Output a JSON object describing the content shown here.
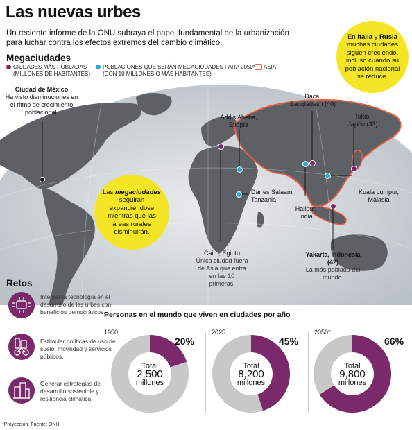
{
  "header": {
    "title": "Las nuevas urbes",
    "intro": "Un reciente informe de la ONU subraya el papel fundamental de la urbanización para luchar contra los efectos extremos del cambio climático."
  },
  "megaciudades": {
    "heading": "Megaciudades",
    "legend": {
      "pobladas_l1": "CIUDADES MÁS POBLADAS",
      "pobladas_l2": "(MILLONES DE HABITANTES)",
      "futuras_l1": "POBLACIONES QUE SERÁN MEGACIUDADES PARA 2050*",
      "futuras_l2": "(CON 10 MILLONES O MÁS HABITANTES)",
      "asia": "ASIA"
    }
  },
  "callouts": {
    "italia": {
      "pre": "En ",
      "italia": "Italia",
      "y": " y ",
      "rusia": "Rusia",
      "rest": " muchas ciudades siguen creciendo, incluso cuando su población nacional se reduce."
    },
    "megas": {
      "pre": "Las ",
      "em": "megaciudades",
      "rest": " seguirán expandiéndose mientras que las áreas rurales disminuirán."
    }
  },
  "cities": {
    "mexico": {
      "name": "Ciudad de México",
      "note": "Ha visto disminuciones en el ritmo de crecimiento poblacional."
    },
    "addis": {
      "name": "Addis Abeba, Etiopía"
    },
    "daca": {
      "name": "Daca, Bangladesh (40)"
    },
    "tokio": {
      "name": "Tokio, Japón (33)"
    },
    "dar": {
      "name": "Dar es Salaam, Tanzania"
    },
    "kuala": {
      "name": "Kuala Lumpur, Malasia"
    },
    "hajipur": {
      "name": "Hajipur, India"
    },
    "cairo": {
      "name": "Cairo, Egipto",
      "note": "Única ciudad fuera de Asia que entra en las 10 primeras."
    },
    "yakarta": {
      "name": "Yakarta, Indonesia (42)",
      "note": "La más poblada del mundo."
    }
  },
  "retos": {
    "heading": "Retos",
    "items": [
      {
        "icon": "technology-brain-icon",
        "text": "Integrar la tecnología en el desarrollo de las urbes con beneficios democráticos."
      },
      {
        "icon": "bicycle-city-icon",
        "text": "Estimular políticas de uso de suelo, movilidad y servicios públicos."
      },
      {
        "icon": "buildings-icon",
        "text": "Generar estrategias de desarrollo sostenible y resiliencia climática."
      }
    ]
  },
  "chart_data": {
    "type": "pie",
    "title": "Personas en el mundo que viven en ciudades por año",
    "charts": [
      {
        "year": "1950",
        "percent": 20,
        "percent_label": "20%",
        "total_label": "Total",
        "total_value": "2,500",
        "unit": "millones"
      },
      {
        "year": "2025",
        "percent": 45,
        "percent_label": "45%",
        "total_label": "Total",
        "total_value": "8,200",
        "unit": "millones"
      },
      {
        "year": "2050*",
        "percent": 66,
        "percent_label": "66%",
        "total_label": "Total",
        "total_value": "9,800",
        "unit": "millones"
      }
    ],
    "colors": {
      "urban": "#7a2a6a",
      "rest": "#c8c8c8"
    }
  },
  "footer": {
    "note": "*Proyección. Fuente: ONU."
  },
  "colors": {
    "purple": "#7a2a6a",
    "cyan": "#2eaad8",
    "asia_outline": "#e8604a",
    "yellow": "#f4e627"
  }
}
